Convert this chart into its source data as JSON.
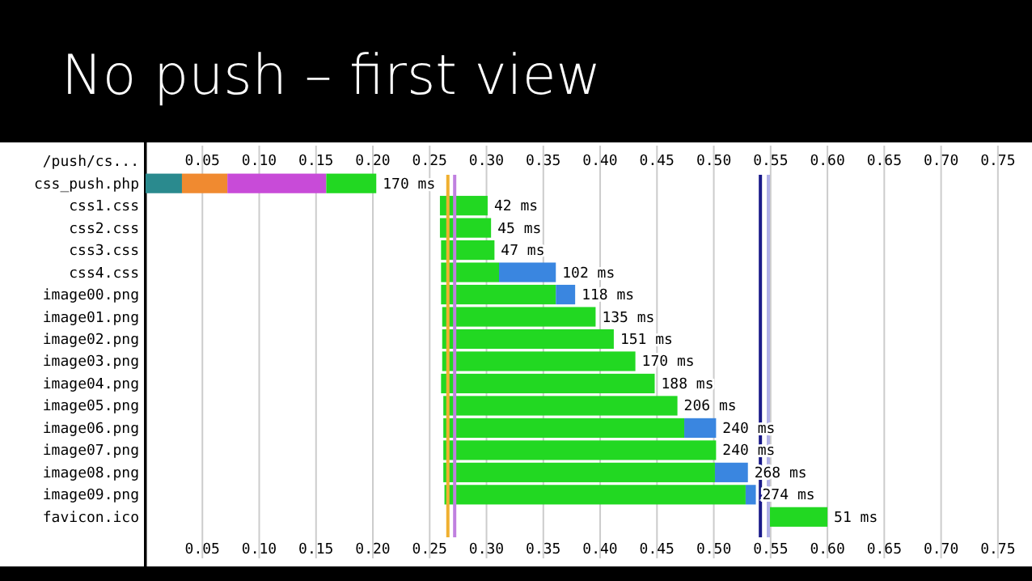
{
  "chart_data": {
    "type": "bar",
    "title": "No push – first view",
    "orientation": "horizontal",
    "grid": "x",
    "categories": [
      "/push/cs...",
      "css_push.php",
      "css1.css",
      "css2.css",
      "css3.css",
      "css4.css",
      "image00.png",
      "image01.png",
      "image02.png",
      "image03.png",
      "image04.png",
      "image05.png",
      "image06.png",
      "image07.png",
      "image08.png",
      "image09.png",
      "favicon.ico"
    ],
    "series": [
      {
        "color": "#2a8a8e",
        "base": [
          null,
          0,
          null,
          null,
          null,
          null,
          null,
          null,
          null,
          null,
          null,
          null,
          null,
          null,
          null,
          null,
          null
        ],
        "values": [
          null,
          0.032,
          null,
          null,
          null,
          null,
          null,
          null,
          null,
          null,
          null,
          null,
          null,
          null,
          null,
          null,
          null
        ]
      },
      {
        "color": "#f08a30",
        "base": [
          null,
          0.032,
          null,
          null,
          null,
          null,
          null,
          null,
          null,
          null,
          null,
          null,
          null,
          null,
          null,
          null,
          null
        ],
        "values": [
          null,
          0.04,
          null,
          null,
          null,
          null,
          null,
          null,
          null,
          null,
          null,
          null,
          null,
          null,
          null,
          null,
          null
        ]
      },
      {
        "color": "#c84bd8",
        "base": [
          null,
          0.072,
          null,
          null,
          null,
          null,
          null,
          null,
          null,
          null,
          null,
          null,
          null,
          null,
          null,
          null,
          null
        ],
        "values": [
          null,
          0.087,
          null,
          null,
          null,
          null,
          null,
          null,
          null,
          null,
          null,
          null,
          null,
          null,
          null,
          null,
          null
        ]
      },
      {
        "color": "#22d822",
        "base": [
          null,
          0.159,
          0.259,
          0.259,
          0.26,
          0.26,
          0.26,
          0.261,
          0.261,
          0.261,
          0.26,
          0.262,
          0.262,
          0.262,
          0.262,
          0.263,
          0.549
        ],
        "values": [
          null,
          0.044,
          0.042,
          0.045,
          0.047,
          0.051,
          0.101,
          0.135,
          0.151,
          0.17,
          0.188,
          0.206,
          0.212,
          0.24,
          0.239,
          0.265,
          0.051
        ]
      },
      {
        "color": "#3a86e0",
        "base": [
          null,
          null,
          null,
          null,
          null,
          0.311,
          0.361,
          null,
          null,
          null,
          null,
          null,
          0.474,
          null,
          0.501,
          0.528,
          null
        ],
        "values": [
          null,
          null,
          null,
          null,
          null,
          0.05,
          0.017,
          null,
          null,
          null,
          null,
          null,
          0.028,
          null,
          0.029,
          0.009,
          null
        ]
      }
    ],
    "value_labels": [
      null,
      "170 ms",
      "42 ms",
      "45 ms",
      "47 ms",
      "102 ms",
      "118 ms",
      "135 ms",
      "151 ms",
      "170 ms",
      "188 ms",
      "206 ms",
      "240 ms",
      "240 ms",
      "268 ms",
      "274 ms",
      "51 ms"
    ],
    "xlim": [
      0,
      0.78
    ],
    "xticks": [
      0.05,
      {
        "value": 0.1,
        "label": "0.10"
      },
      0.15,
      {
        "value": 0.2,
        "label": "0.20"
      },
      0.25,
      {
        "value": 0.3,
        "label": "0.30"
      },
      0.35,
      {
        "value": 0.4,
        "label": "0.40"
      },
      0.45,
      {
        "value": 0.5,
        "label": "0.50"
      },
      0.55,
      {
        "value": 0.6,
        "label": "0.60"
      },
      0.65,
      {
        "value": 0.7,
        "label": "0.70"
      },
      0.75
    ],
    "x2lim": [
      0,
      0.78
    ],
    "x2ticks": [
      0.05,
      {
        "value": 0.1,
        "label": "0.10"
      },
      0.15,
      {
        "value": 0.2,
        "label": "0.20"
      },
      0.25,
      {
        "value": 0.3,
        "label": "0.30"
      },
      0.35,
      {
        "value": 0.4,
        "label": "0.40"
      },
      0.45,
      {
        "value": 0.5,
        "label": "0.50"
      },
      0.55,
      {
        "value": 0.6,
        "label": "0.60"
      },
      0.65,
      {
        "value": 0.7,
        "label": "0.70"
      },
      0.75
    ],
    "ref_lines": [
      {
        "axis": "x",
        "value": 0.266,
        "color": "#f0b030"
      },
      {
        "axis": "x",
        "value": 0.272,
        "color": "#c080e0"
      },
      {
        "axis": "x",
        "value": 0.541,
        "color": "#1a1a8a"
      },
      {
        "axis": "x",
        "value": 0.548,
        "color": "#b0b0e8"
      }
    ]
  }
}
